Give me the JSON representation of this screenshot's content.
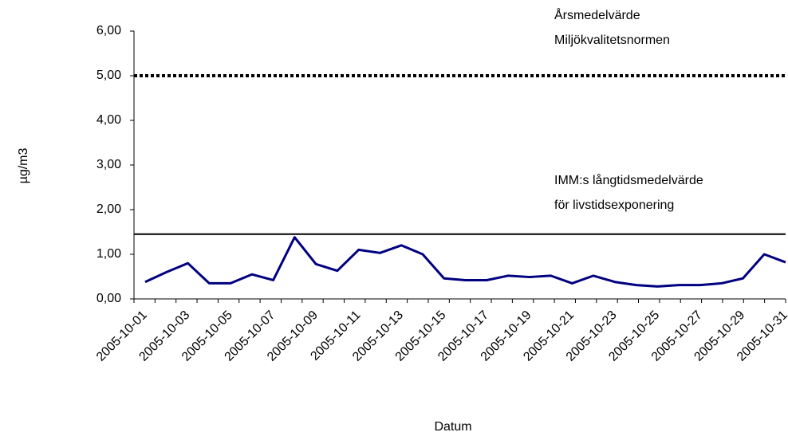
{
  "chart_data": {
    "type": "line",
    "y_label": "µg/m3",
    "x_label": "Datum",
    "categories": [
      "2005-10-01",
      null,
      "2005-10-03",
      null,
      "2005-10-05",
      null,
      "2005-10-07",
      null,
      "2005-10-09",
      null,
      "2005-10-11",
      null,
      "2005-10-13",
      null,
      "2005-10-15",
      null,
      "2005-10-17",
      null,
      "2005-10-19",
      null,
      "2005-10-21",
      null,
      "2005-10-23",
      null,
      "2005-10-25",
      null,
      "2005-10-27",
      null,
      "2005-10-29",
      null,
      "2005-10-31"
    ],
    "series": [
      {
        "color": "#000080",
        "values": [
          0.38,
          0.6,
          0.8,
          0.35,
          0.35,
          0.55,
          0.42,
          1.38,
          0.78,
          0.63,
          1.1,
          1.03,
          1.2,
          1.0,
          0.46,
          0.42,
          0.42,
          0.52,
          0.49,
          0.52,
          0.35,
          0.52,
          0.38,
          0.31,
          0.28,
          0.31,
          0.31,
          0.35,
          0.46,
          1.0,
          0.82
        ]
      }
    ],
    "reference_lines": [
      {
        "value": 5.0,
        "style": "dotted",
        "color": "#000000",
        "label_lines": [
          "Årsmedelvärde",
          "Miljökvalitetsnormen"
        ]
      },
      {
        "value": 1.45,
        "style": "solid",
        "color": "#000000",
        "label_lines": [
          "IMM:s långtidsmedelvärde",
          "för livstidsexponering"
        ]
      }
    ],
    "ylim": [
      0,
      6
    ],
    "yticks": [
      {
        "value": 0,
        "label": "0,00"
      },
      {
        "value": 1,
        "label": "1,00"
      },
      {
        "value": 2,
        "label": "2,00"
      },
      {
        "value": 3,
        "label": "3,00"
      },
      {
        "value": 4,
        "label": "4,00"
      },
      {
        "value": 5,
        "label": "5,00"
      },
      {
        "value": 6,
        "label": "6,00"
      }
    ]
  }
}
